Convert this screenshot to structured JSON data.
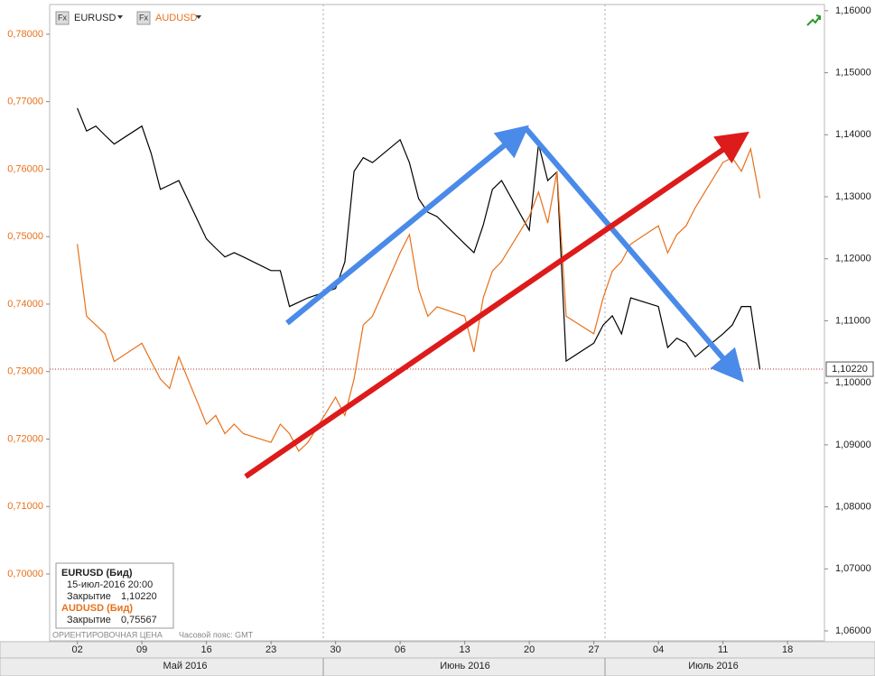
{
  "chart_data": {
    "type": "line",
    "legend_icon": "Fx",
    "x": [
      "2016-05-02",
      "2016-05-03",
      "2016-05-04",
      "2016-05-05",
      "2016-05-06",
      "2016-05-09",
      "2016-05-10",
      "2016-05-11",
      "2016-05-12",
      "2016-05-13",
      "2016-05-16",
      "2016-05-17",
      "2016-05-18",
      "2016-05-19",
      "2016-05-20",
      "2016-05-23",
      "2016-05-24",
      "2016-05-25",
      "2016-05-26",
      "2016-05-27",
      "2016-05-30",
      "2016-05-31",
      "2016-06-01",
      "2016-06-02",
      "2016-06-03",
      "2016-06-06",
      "2016-06-07",
      "2016-06-08",
      "2016-06-09",
      "2016-06-10",
      "2016-06-13",
      "2016-06-14",
      "2016-06-15",
      "2016-06-16",
      "2016-06-17",
      "2016-06-20",
      "2016-06-21",
      "2016-06-22",
      "2016-06-23",
      "2016-06-24",
      "2016-06-27",
      "2016-06-28",
      "2016-06-29",
      "2016-06-30",
      "2016-07-01",
      "2016-07-04",
      "2016-07-05",
      "2016-07-06",
      "2016-07-07",
      "2016-07-08",
      "2016-07-11",
      "2016-07-12",
      "2016-07-13",
      "2016-07-14",
      "2016-07-15"
    ],
    "xlim": [
      "2016-04-29",
      "2016-07-22"
    ],
    "xticks": [
      {
        "value": "2016-05-02",
        "label": "02"
      },
      {
        "value": "2016-05-09",
        "label": "09"
      },
      {
        "value": "2016-05-16",
        "label": "16"
      },
      {
        "value": "2016-05-23",
        "label": "23"
      },
      {
        "value": "2016-05-30",
        "label": "30"
      },
      {
        "value": "2016-06-06",
        "label": "06"
      },
      {
        "value": "2016-06-13",
        "label": "13"
      },
      {
        "value": "2016-06-20",
        "label": "20"
      },
      {
        "value": "2016-06-27",
        "label": "27"
      },
      {
        "value": "2016-07-04",
        "label": "04"
      },
      {
        "value": "2016-07-11",
        "label": "11"
      },
      {
        "value": "2016-07-18",
        "label": "18"
      }
    ],
    "month_labels": [
      "Май 2016",
      "Июнь 2016",
      "Июль 2016"
    ],
    "series": [
      {
        "name": "EURUSD",
        "color": "#000000",
        "axis": "y2",
        "values": [
          1.1443,
          1.1406,
          1.1414,
          1.1399,
          1.1385,
          1.1414,
          1.137,
          1.1312,
          1.1319,
          1.1326,
          1.1232,
          1.1217,
          1.1203,
          1.121,
          1.1203,
          1.1181,
          1.1181,
          1.1123,
          1.113,
          1.1137,
          1.1152,
          1.1195,
          1.1341,
          1.1363,
          1.1355,
          1.1392,
          1.1355,
          1.1297,
          1.1275,
          1.1268,
          1.1224,
          1.121,
          1.1254,
          1.1312,
          1.1326,
          1.1246,
          1.1385,
          1.1326,
          1.134,
          1.1035,
          1.1064,
          1.1093,
          1.1108,
          1.1079,
          1.1137,
          1.1123,
          1.1057,
          1.1072,
          1.1064,
          1.1042,
          1.1079,
          1.1093,
          1.1123,
          1.1123,
          1.1022
        ]
      },
      {
        "name": "AUDUSD",
        "color": "#e8701a",
        "values": [
          0.7489,
          0.7382,
          0.7369,
          0.7356,
          0.7315,
          0.7342,
          0.7315,
          0.7289,
          0.7275,
          0.7322,
          0.7222,
          0.7235,
          0.7208,
          0.7222,
          0.7208,
          0.7195,
          0.7222,
          0.7208,
          0.7182,
          0.7195,
          0.7262,
          0.7235,
          0.7289,
          0.7369,
          0.7382,
          0.7476,
          0.7503,
          0.7422,
          0.7382,
          0.7396,
          0.7382,
          0.7329,
          0.7409,
          0.7449,
          0.7463,
          0.753,
          0.7566,
          0.752,
          0.7597,
          0.7382,
          0.7356,
          0.7409,
          0.7449,
          0.7463,
          0.7489,
          0.7516,
          0.7476,
          0.7503,
          0.7516,
          0.7543,
          0.761,
          0.7617,
          0.7597,
          0.763,
          0.7557
        ]
      }
    ],
    "ylim": [
      0.6901,
      0.7844
    ],
    "yticks": [
      {
        "value": 0.7,
        "label": "0,70000"
      },
      {
        "value": 0.71,
        "label": "0,71000"
      },
      {
        "value": 0.72,
        "label": "0,72000"
      },
      {
        "value": 0.73,
        "label": "0,73000"
      },
      {
        "value": 0.74,
        "label": "0,74000"
      },
      {
        "value": 0.75,
        "label": "0,75000"
      },
      {
        "value": 0.76,
        "label": "0,76000"
      },
      {
        "value": 0.77,
        "label": "0,77000"
      },
      {
        "value": 0.78,
        "label": "0,78000"
      }
    ],
    "y2lim": [
      1.0584,
      1.161
    ],
    "y2ticks": [
      {
        "value": 1.06,
        "label": "1,06000"
      },
      {
        "value": 1.07,
        "label": "1,07000"
      },
      {
        "value": 1.08,
        "label": "1,08000"
      },
      {
        "value": 1.09,
        "label": "1,09000"
      },
      {
        "value": 1.1,
        "label": "1,10000"
      },
      {
        "value": 1.11,
        "label": "1,11000"
      },
      {
        "value": 1.12,
        "label": "1,12000"
      },
      {
        "value": 1.13,
        "label": "1,13000"
      },
      {
        "value": 1.14,
        "label": "1,14000"
      },
      {
        "value": 1.15,
        "label": "1,15000"
      },
      {
        "value": 1.16,
        "label": "1,16000"
      }
    ],
    "price_marker": {
      "value": 1.1022,
      "label": "1,10220"
    },
    "info_box": {
      "title_1": "EURUSD (Бид)",
      "datetime": "15-июл-2016 20:00",
      "close_label_1": "Закрытие",
      "title_2": "AUDUSD (Бид)",
      "close_label_2": "Закрытие",
      "close_2": {
        "value": 0.75567,
        "label": "0,75567"
      }
    },
    "footer_left": "ОРИЕНТИРОВОЧНАЯ ЦЕНА",
    "footer_timezone": "Часовой пояс: GMT"
  }
}
